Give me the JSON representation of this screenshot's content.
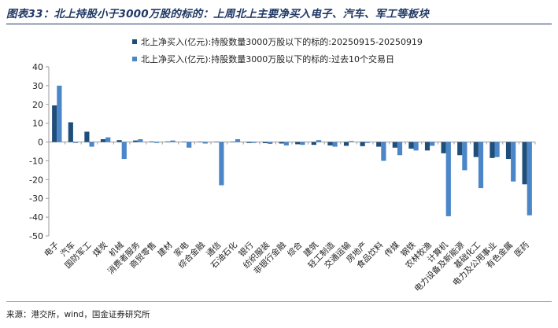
{
  "header": {
    "title": "图表33：北上持股小于3000万股的标的：上周北上主要净买入电子、汽车、军工等板块"
  },
  "footer": {
    "source": "来源：港交所，wind，国金证券研究所"
  },
  "colors": {
    "series1": "#1f4e79",
    "series2": "#4a86c8",
    "axis": "#999999",
    "title": "#1f3864"
  },
  "chart_data": {
    "type": "bar",
    "title": "",
    "xlabel": "",
    "ylabel": "",
    "ylim": [
      -50,
      40
    ],
    "yticks": [
      40,
      30,
      20,
      10,
      0,
      -10,
      -20,
      -30,
      -40,
      -50
    ],
    "grid": false,
    "legend_position": "top",
    "categories": [
      "电子",
      "汽车",
      "国防军工",
      "煤炭",
      "机械",
      "消费者服务",
      "商贸零售",
      "建材",
      "家电",
      "综合金融",
      "通信",
      "石油石化",
      "银行",
      "纺织服装",
      "非银行金融",
      "综合",
      "建筑",
      "轻工制造",
      "交通运输",
      "房地产",
      "食品饮料",
      "传媒",
      "钢铁",
      "农林牧渔",
      "计算机",
      "电力设备及新能源",
      "基础化工",
      "电力及公用事业",
      "有色金属",
      "医药"
    ],
    "series": [
      {
        "name": "北上净买入(亿元):持股数量3000万股以下的标的:20250915-20250919",
        "values": [
          19.5,
          10.5,
          5.5,
          1.5,
          1.0,
          0.8,
          0.3,
          0.3,
          0.2,
          0.2,
          0.1,
          0.1,
          -0.5,
          -0.6,
          -0.8,
          -1.2,
          -1.5,
          -1.8,
          -2.0,
          -2.2,
          -2.5,
          -3.0,
          -3.5,
          -4.5,
          -6.0,
          -7.0,
          -8.0,
          -8.5,
          -9.0,
          -22.5
        ]
      },
      {
        "name": "北上净买入(亿元):持股数量3000万股以下的标的:过去10个交易日",
        "values": [
          30.0,
          -0.5,
          -2.5,
          2.5,
          -9.0,
          1.5,
          -0.5,
          0.8,
          -3.0,
          -0.8,
          -23.0,
          1.5,
          -0.5,
          -1.0,
          -1.8,
          -1.5,
          1.0,
          -2.5,
          0.5,
          -0.5,
          -10.0,
          -7.0,
          -4.5,
          -2.0,
          -39.5,
          -15.0,
          -24.5,
          -8.0,
          -21.0,
          -39.0
        ]
      }
    ]
  }
}
